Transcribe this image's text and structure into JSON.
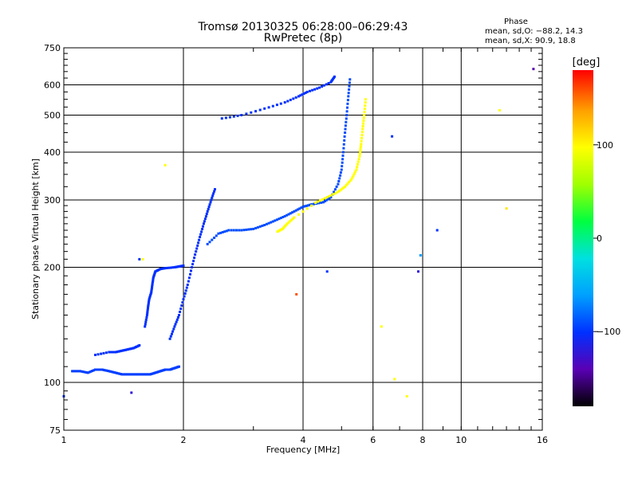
{
  "header": {
    "title": "Tromsø 20130325 06:28:00–06:29:43",
    "subtitle": "RwPretec (8p)",
    "phase_label": "Phase",
    "phase_o": "mean, sd,O: −88.2, 14.3",
    "phase_x": "mean, sd,X:  90.9, 18.8"
  },
  "chart_data": {
    "type": "scatter",
    "title": "Tromsø 20130325 06:28:00–06:29:43",
    "subtitle": "RwPretec (8p)",
    "xlabel": "Frequency [MHz]",
    "ylabel": "Stationary phase Virtual Height [km]",
    "xscale": "log",
    "yscale": "log",
    "xlim": [
      1,
      16
    ],
    "ylim": [
      75,
      750
    ],
    "x_ticks": [
      1,
      2,
      4,
      6,
      8,
      10,
      16
    ],
    "x_tick_labels": [
      "1",
      "2",
      "4",
      "6",
      "8",
      "10",
      "16"
    ],
    "y_ticks": [
      75,
      100,
      200,
      300,
      400,
      500,
      600,
      750
    ],
    "y_tick_labels": [
      "75",
      "100",
      "200",
      "300",
      "400",
      "500",
      "600",
      "750"
    ],
    "grid": true,
    "colorbar": {
      "label": "[deg]",
      "range": [
        -180,
        180
      ],
      "ticks": [
        -100,
        0,
        100
      ],
      "tick_labels": [
        "−100",
        "0",
        "100"
      ],
      "colors": [
        "#000000",
        "#5a00b4",
        "#0030ff",
        "#00a0ff",
        "#00e0e0",
        "#00ff40",
        "#a0ff00",
        "#ffff00",
        "#ffa000",
        "#ff0000"
      ]
    },
    "series": [
      {
        "phase": -95,
        "points": [
          [
            1.05,
            107
          ],
          [
            1.1,
            107
          ],
          [
            1.15,
            106
          ],
          [
            1.2,
            108
          ],
          [
            1.25,
            108
          ],
          [
            1.3,
            107
          ],
          [
            1.35,
            106
          ],
          [
            1.4,
            105
          ],
          [
            1.45,
            105
          ],
          [
            1.5,
            105
          ],
          [
            1.55,
            105
          ],
          [
            1.6,
            105
          ],
          [
            1.65,
            105
          ],
          [
            1.7,
            106
          ],
          [
            1.75,
            107
          ],
          [
            1.8,
            108
          ],
          [
            1.85,
            108
          ],
          [
            1.9,
            109
          ],
          [
            1.95,
            110
          ]
        ]
      },
      {
        "phase": -100,
        "points": [
          [
            1.2,
            118
          ],
          [
            1.3,
            120
          ],
          [
            1.35,
            120
          ],
          [
            1.4,
            121
          ],
          [
            1.45,
            122
          ],
          [
            1.5,
            123
          ],
          [
            1.55,
            125
          ]
        ]
      },
      {
        "phase": -100,
        "points": [
          [
            1.6,
            140
          ],
          [
            1.62,
            150
          ],
          [
            1.63,
            158
          ],
          [
            1.64,
            165
          ],
          [
            1.66,
            172
          ],
          [
            1.67,
            180
          ],
          [
            1.68,
            188
          ],
          [
            1.7,
            195
          ],
          [
            1.75,
            198
          ],
          [
            1.8,
            199
          ],
          [
            1.9,
            200
          ],
          [
            1.95,
            201
          ],
          [
            2.0,
            202
          ]
        ]
      },
      {
        "phase": -100,
        "points": [
          [
            1.85,
            130
          ],
          [
            1.9,
            140
          ],
          [
            1.95,
            150
          ],
          [
            2.0,
            165
          ],
          [
            2.05,
            180
          ],
          [
            2.1,
            200
          ],
          [
            2.15,
            220
          ],
          [
            2.2,
            240
          ],
          [
            2.25,
            260
          ],
          [
            2.3,
            280
          ],
          [
            2.35,
            300
          ],
          [
            2.4,
            320
          ]
        ]
      },
      {
        "phase": -90,
        "points": [
          [
            2.3,
            230
          ],
          [
            2.45,
            245
          ],
          [
            2.6,
            250
          ],
          [
            2.8,
            250
          ],
          [
            3.0,
            252
          ],
          [
            3.2,
            258
          ],
          [
            3.4,
            265
          ],
          [
            3.6,
            272
          ],
          [
            3.8,
            280
          ],
          [
            4.0,
            288
          ],
          [
            4.2,
            292
          ],
          [
            4.5,
            296
          ],
          [
            4.7,
            305
          ],
          [
            4.9,
            330
          ],
          [
            5.0,
            360
          ],
          [
            5.05,
            400
          ],
          [
            5.1,
            450
          ],
          [
            5.15,
            500
          ],
          [
            5.2,
            560
          ],
          [
            5.25,
            620
          ]
        ]
      },
      {
        "phase": -100,
        "points": [
          [
            2.5,
            490
          ],
          [
            2.8,
            500
          ],
          [
            3.2,
            520
          ],
          [
            3.6,
            540
          ],
          [
            3.9,
            560
          ],
          [
            4.1,
            575
          ],
          [
            4.4,
            590
          ],
          [
            4.7,
            610
          ],
          [
            4.8,
            630
          ]
        ]
      },
      {
        "phase": 100,
        "points": [
          [
            3.45,
            248
          ],
          [
            3.55,
            252
          ],
          [
            3.65,
            260
          ],
          [
            3.8,
            270
          ],
          [
            4.3,
            295
          ],
          [
            4.6,
            305
          ],
          [
            4.9,
            315
          ],
          [
            5.1,
            325
          ],
          [
            5.3,
            340
          ],
          [
            5.45,
            360
          ],
          [
            5.55,
            390
          ],
          [
            5.6,
            420
          ],
          [
            5.65,
            460
          ],
          [
            5.7,
            500
          ],
          [
            5.75,
            550
          ]
        ]
      }
    ],
    "outliers": [
      {
        "x": 1.0,
        "y": 92,
        "phase": -100
      },
      {
        "x": 1.48,
        "y": 94,
        "phase": -120
      },
      {
        "x": 1.55,
        "y": 210,
        "phase": -100
      },
      {
        "x": 1.58,
        "y": 210,
        "phase": 100
      },
      {
        "x": 1.8,
        "y": 370,
        "phase": 100
      },
      {
        "x": 3.85,
        "y": 170,
        "phase": 160
      },
      {
        "x": 4.6,
        "y": 195,
        "phase": -100
      },
      {
        "x": 6.3,
        "y": 140,
        "phase": 100
      },
      {
        "x": 6.7,
        "y": 440,
        "phase": -100
      },
      {
        "x": 6.8,
        "y": 102,
        "phase": 100
      },
      {
        "x": 7.3,
        "y": 92,
        "phase": 100
      },
      {
        "x": 7.8,
        "y": 195,
        "phase": -120
      },
      {
        "x": 7.9,
        "y": 215,
        "phase": -60
      },
      {
        "x": 8.7,
        "y": 250,
        "phase": -100
      },
      {
        "x": 12.5,
        "y": 515,
        "phase": 100
      },
      {
        "x": 13.0,
        "y": 285,
        "phase": 110
      },
      {
        "x": 15.2,
        "y": 660,
        "phase": -140
      }
    ]
  }
}
